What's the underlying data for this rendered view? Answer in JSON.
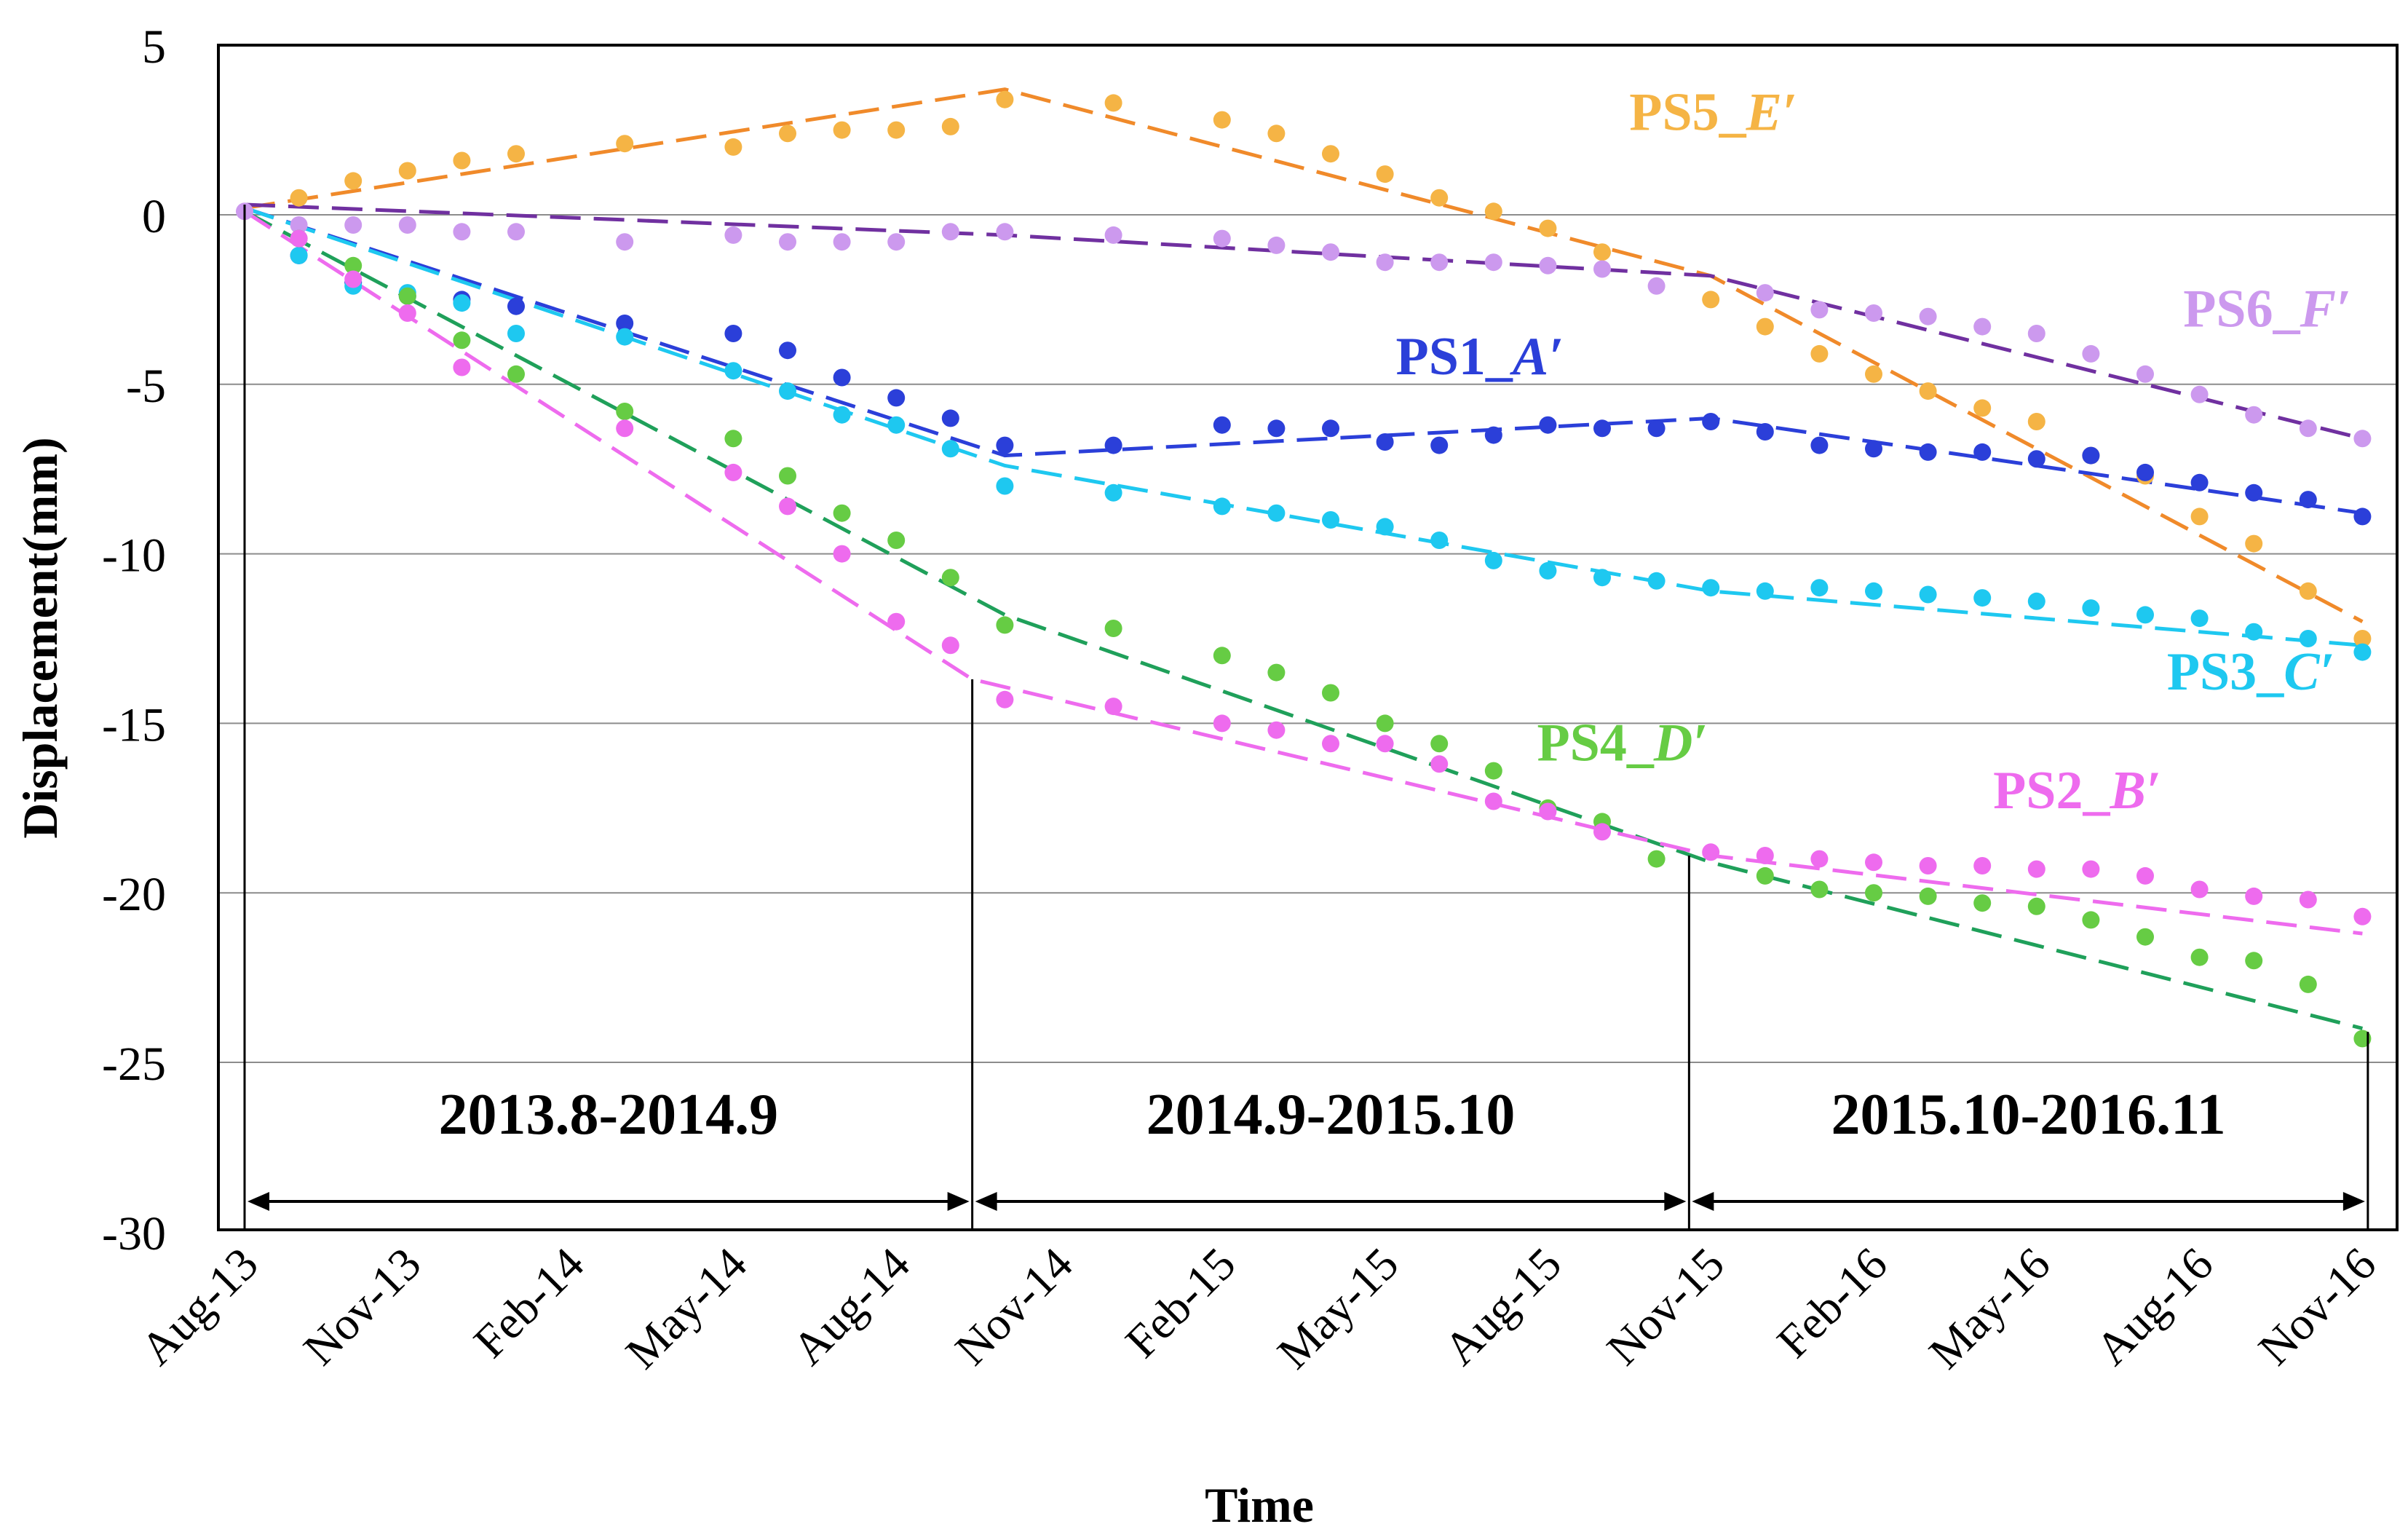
{
  "chart_data": {
    "type": "scatter",
    "title": "",
    "xlabel": "Time",
    "ylabel": "Displacement(mm)",
    "ylim": [
      -30,
      5
    ],
    "yticks": [
      5,
      0,
      -5,
      -10,
      -15,
      -20,
      -25,
      -30
    ],
    "x_range_months": [
      0,
      39.5
    ],
    "x_ticks": [
      {
        "label": "Aug-13",
        "month": 0
      },
      {
        "label": "Nov-13",
        "month": 3
      },
      {
        "label": "Feb-14",
        "month": 6
      },
      {
        "label": "May-14",
        "month": 9
      },
      {
        "label": "Aug-14",
        "month": 12
      },
      {
        "label": "Nov-14",
        "month": 15
      },
      {
        "label": "Feb-15",
        "month": 18
      },
      {
        "label": "May-15",
        "month": 21
      },
      {
        "label": "Aug-15",
        "month": 24
      },
      {
        "label": "Nov-15",
        "month": 27
      },
      {
        "label": "Feb-16",
        "month": 30
      },
      {
        "label": "May-16",
        "month": 33
      },
      {
        "label": "Aug-16",
        "month": 36
      },
      {
        "label": "Nov-16",
        "month": 39
      }
    ],
    "grid": true,
    "periods": [
      {
        "label": "2013.8-2014.9",
        "start": 0,
        "end": 13.4
      },
      {
        "label": "2014.9-2015.10",
        "start": 13.4,
        "end": 26.6
      },
      {
        "label": "2015.10-2016.11",
        "start": 26.6,
        "end": 39.1
      }
    ],
    "period_markers": [
      {
        "month": 0,
        "top": 0.3
      },
      {
        "month": 13.4,
        "top": -13.7
      },
      {
        "month": 26.6,
        "top": -18.9
      },
      {
        "month": 39.1,
        "top": -24.1
      }
    ],
    "series": [
      {
        "name": "PS5",
        "label_suffix": "E′",
        "color": "#F5B445",
        "trend_color": "#F08A2A",
        "label_pos": [
          25.5,
          2.5
        ],
        "trend": [
          [
            0,
            0.2
          ],
          [
            14,
            3.7
          ],
          [
            27,
            -1.8
          ],
          [
            39,
            -12.0
          ]
        ],
        "points": [
          [
            1,
            0.5
          ],
          [
            2,
            1.0
          ],
          [
            3,
            1.3
          ],
          [
            4,
            1.6
          ],
          [
            5,
            1.8
          ],
          [
            7,
            2.1
          ],
          [
            9,
            2.0
          ],
          [
            10,
            2.4
          ],
          [
            11,
            2.5
          ],
          [
            12,
            2.5
          ],
          [
            13,
            2.6
          ],
          [
            14,
            3.4
          ],
          [
            16,
            3.3
          ],
          [
            18,
            2.8
          ],
          [
            19,
            2.4
          ],
          [
            20,
            1.8
          ],
          [
            21,
            1.2
          ],
          [
            22,
            0.5
          ],
          [
            23,
            0.1
          ],
          [
            24,
            -0.4
          ],
          [
            25,
            -1.1
          ],
          [
            27,
            -2.5
          ],
          [
            28,
            -3.3
          ],
          [
            29,
            -4.1
          ],
          [
            30,
            -4.7
          ],
          [
            31,
            -5.2
          ],
          [
            32,
            -5.7
          ],
          [
            33,
            -6.1
          ],
          [
            34,
            -7.1
          ],
          [
            35,
            -7.7
          ],
          [
            36,
            -8.9
          ],
          [
            37,
            -9.7
          ],
          [
            38,
            -11.1
          ],
          [
            39,
            -12.5
          ]
        ]
      },
      {
        "name": "PS6",
        "label_suffix": "F′",
        "color": "#CC99EE",
        "trend_color": "#7030A0",
        "label_pos": [
          35.7,
          -3.3
        ],
        "trend": [
          [
            0,
            0.3
          ],
          [
            14,
            -0.6
          ],
          [
            27,
            -1.8
          ],
          [
            39,
            -6.6
          ]
        ],
        "points": [
          [
            0,
            0.1
          ],
          [
            1,
            -0.3
          ],
          [
            2,
            -0.3
          ],
          [
            3,
            -0.3
          ],
          [
            4,
            -0.5
          ],
          [
            5,
            -0.5
          ],
          [
            7,
            -0.8
          ],
          [
            9,
            -0.6
          ],
          [
            10,
            -0.8
          ],
          [
            11,
            -0.8
          ],
          [
            12,
            -0.8
          ],
          [
            13,
            -0.5
          ],
          [
            14,
            -0.5
          ],
          [
            16,
            -0.6
          ],
          [
            18,
            -0.7
          ],
          [
            19,
            -0.9
          ],
          [
            20,
            -1.1
          ],
          [
            21,
            -1.4
          ],
          [
            22,
            -1.4
          ],
          [
            23,
            -1.4
          ],
          [
            24,
            -1.5
          ],
          [
            25,
            -1.6
          ],
          [
            26,
            -2.1
          ],
          [
            28,
            -2.3
          ],
          [
            29,
            -2.8
          ],
          [
            30,
            -2.9
          ],
          [
            31,
            -3.0
          ],
          [
            32,
            -3.3
          ],
          [
            33,
            -3.5
          ],
          [
            34,
            -4.1
          ],
          [
            35,
            -4.7
          ],
          [
            36,
            -5.3
          ],
          [
            37,
            -5.9
          ],
          [
            38,
            -6.3
          ],
          [
            39,
            -6.6
          ]
        ]
      },
      {
        "name": "PS1",
        "label_suffix": "A′",
        "color": "#2B3FD9",
        "trend_color": "#2B3FD9",
        "label_pos": [
          21.2,
          -4.7
        ],
        "trend": [
          [
            0,
            0.2
          ],
          [
            14,
            -7.1
          ],
          [
            27,
            -6.0
          ],
          [
            39,
            -8.8
          ]
        ],
        "points": [
          [
            1,
            -1.2
          ],
          [
            2,
            -2.0
          ],
          [
            3,
            -2.4
          ],
          [
            4,
            -2.5
          ],
          [
            5,
            -2.7
          ],
          [
            7,
            -3.2
          ],
          [
            9,
            -3.5
          ],
          [
            10,
            -4.0
          ],
          [
            11,
            -4.8
          ],
          [
            12,
            -5.4
          ],
          [
            13,
            -6.0
          ],
          [
            14,
            -6.8
          ],
          [
            16,
            -6.8
          ],
          [
            18,
            -6.2
          ],
          [
            19,
            -6.3
          ],
          [
            20,
            -6.3
          ],
          [
            21,
            -6.7
          ],
          [
            22,
            -6.8
          ],
          [
            23,
            -6.5
          ],
          [
            24,
            -6.2
          ],
          [
            25,
            -6.3
          ],
          [
            26,
            -6.3
          ],
          [
            27,
            -6.1
          ],
          [
            28,
            -6.4
          ],
          [
            29,
            -6.8
          ],
          [
            30,
            -6.9
          ],
          [
            31,
            -7.0
          ],
          [
            32,
            -7.0
          ],
          [
            33,
            -7.2
          ],
          [
            34,
            -7.1
          ],
          [
            35,
            -7.6
          ],
          [
            36,
            -7.9
          ],
          [
            37,
            -8.2
          ],
          [
            38,
            -8.4
          ],
          [
            39,
            -8.9
          ]
        ]
      },
      {
        "name": "PS3",
        "label_suffix": "C′",
        "color": "#1EC8F0",
        "trend_color": "#1EC8F0",
        "label_pos": [
          35.4,
          -14.0
        ],
        "trend": [
          [
            0,
            0.2
          ],
          [
            14,
            -7.4
          ],
          [
            27,
            -11.1
          ],
          [
            39,
            -12.7
          ]
        ],
        "points": [
          [
            1,
            -1.2
          ],
          [
            2,
            -2.1
          ],
          [
            3,
            -2.3
          ],
          [
            4,
            -2.6
          ],
          [
            5,
            -3.5
          ],
          [
            7,
            -3.6
          ],
          [
            9,
            -4.6
          ],
          [
            10,
            -5.2
          ],
          [
            11,
            -5.9
          ],
          [
            12,
            -6.2
          ],
          [
            13,
            -6.9
          ],
          [
            14,
            -8.0
          ],
          [
            16,
            -8.2
          ],
          [
            18,
            -8.6
          ],
          [
            19,
            -8.8
          ],
          [
            20,
            -9.0
          ],
          [
            21,
            -9.2
          ],
          [
            22,
            -9.6
          ],
          [
            23,
            -10.2
          ],
          [
            24,
            -10.5
          ],
          [
            25,
            -10.7
          ],
          [
            26,
            -10.8
          ],
          [
            27,
            -11.0
          ],
          [
            28,
            -11.1
          ],
          [
            29,
            -11.0
          ],
          [
            30,
            -11.1
          ],
          [
            31,
            -11.2
          ],
          [
            32,
            -11.3
          ],
          [
            33,
            -11.4
          ],
          [
            34,
            -11.6
          ],
          [
            35,
            -11.8
          ],
          [
            36,
            -11.9
          ],
          [
            37,
            -12.3
          ],
          [
            38,
            -12.5
          ],
          [
            39,
            -12.9
          ]
        ]
      },
      {
        "name": "PS4",
        "label_suffix": "D′",
        "color": "#66CC44",
        "trend_color": "#1FA05A",
        "label_pos": [
          23.8,
          -16.1
        ],
        "trend": [
          [
            0,
            0.1
          ],
          [
            14,
            -11.8
          ],
          [
            27,
            -19.1
          ],
          [
            39,
            -24.0
          ]
        ],
        "points": [
          [
            1,
            -0.7
          ],
          [
            2,
            -1.5
          ],
          [
            3,
            -2.4
          ],
          [
            4,
            -3.7
          ],
          [
            5,
            -4.7
          ],
          [
            7,
            -5.8
          ],
          [
            9,
            -6.6
          ],
          [
            10,
            -7.7
          ],
          [
            11,
            -8.8
          ],
          [
            12,
            -9.6
          ],
          [
            13,
            -10.7
          ],
          [
            14,
            -12.1
          ],
          [
            16,
            -12.2
          ],
          [
            18,
            -13.0
          ],
          [
            19,
            -13.5
          ],
          [
            20,
            -14.1
          ],
          [
            21,
            -15.0
          ],
          [
            22,
            -15.6
          ],
          [
            23,
            -16.4
          ],
          [
            24,
            -17.5
          ],
          [
            25,
            -17.9
          ],
          [
            26,
            -19.0
          ],
          [
            28,
            -19.5
          ],
          [
            29,
            -19.9
          ],
          [
            30,
            -20.0
          ],
          [
            31,
            -20.1
          ],
          [
            32,
            -20.3
          ],
          [
            33,
            -20.4
          ],
          [
            34,
            -20.8
          ],
          [
            35,
            -21.3
          ],
          [
            36,
            -21.9
          ],
          [
            37,
            -22.0
          ],
          [
            38,
            -22.7
          ],
          [
            39,
            -24.3
          ]
        ]
      },
      {
        "name": "PS2",
        "label_suffix": "B′",
        "color": "#EE6BEE",
        "trend_color": "#EE6BEE",
        "label_pos": [
          32.2,
          -17.5
        ],
        "trend": [
          [
            0,
            0.1
          ],
          [
            13.4,
            -13.7
          ],
          [
            27,
            -18.9
          ],
          [
            39,
            -21.2
          ]
        ],
        "points": [
          [
            1,
            -0.7
          ],
          [
            2,
            -1.9
          ],
          [
            3,
            -2.9
          ],
          [
            4,
            -4.5
          ],
          [
            7,
            -6.3
          ],
          [
            9,
            -7.6
          ],
          [
            10,
            -8.6
          ],
          [
            11,
            -10.0
          ],
          [
            12,
            -12.0
          ],
          [
            13,
            -12.7
          ],
          [
            14,
            -14.3
          ],
          [
            16,
            -14.5
          ],
          [
            18,
            -15.0
          ],
          [
            19,
            -15.2
          ],
          [
            20,
            -15.6
          ],
          [
            21,
            -15.6
          ],
          [
            22,
            -16.2
          ],
          [
            23,
            -17.3
          ],
          [
            24,
            -17.6
          ],
          [
            25,
            -18.2
          ],
          [
            27,
            -18.8
          ],
          [
            28,
            -18.9
          ],
          [
            29,
            -19.0
          ],
          [
            30,
            -19.1
          ],
          [
            31,
            -19.2
          ],
          [
            32,
            -19.2
          ],
          [
            33,
            -19.3
          ],
          [
            34,
            -19.3
          ],
          [
            35,
            -19.5
          ],
          [
            36,
            -19.9
          ],
          [
            37,
            -20.1
          ],
          [
            38,
            -20.2
          ],
          [
            39,
            -20.7
          ]
        ]
      }
    ]
  }
}
